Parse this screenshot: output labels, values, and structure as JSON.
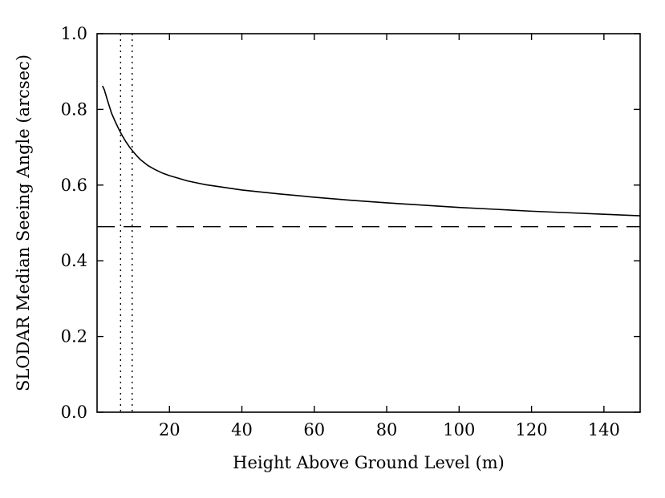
{
  "chart_data": {
    "type": "line",
    "xlabel": "Height Above Ground Level (m)",
    "ylabel": "SLODAR Median Seeing Angle (arcsec)",
    "xlim": [
      0,
      150
    ],
    "ylim": [
      0.0,
      1.0
    ],
    "x_ticks": [
      20,
      40,
      60,
      80,
      100,
      120,
      140
    ],
    "y_ticks": [
      0.0,
      0.2,
      0.4,
      0.6,
      0.8,
      1.0
    ],
    "y_tick_labels": [
      "0.0",
      "0.2",
      "0.4",
      "0.6",
      "0.8",
      "1.0"
    ],
    "grid": false,
    "series": [
      {
        "style": "solid",
        "color": "#000000",
        "x": [
          1.5,
          2,
          3,
          4,
          5,
          6,
          7,
          8,
          9,
          10,
          11,
          12,
          14,
          16,
          18,
          20,
          25,
          30,
          40,
          50,
          60,
          70,
          80,
          90,
          100,
          110,
          120,
          130,
          140,
          150
        ],
        "y": [
          0.862,
          0.852,
          0.82,
          0.79,
          0.768,
          0.748,
          0.73,
          0.714,
          0.7,
          0.688,
          0.677,
          0.667,
          0.652,
          0.641,
          0.632,
          0.625,
          0.611,
          0.601,
          0.587,
          0.577,
          0.568,
          0.56,
          0.553,
          0.547,
          0.541,
          0.536,
          0.531,
          0.527,
          0.523,
          0.519
        ]
      }
    ],
    "reference_lines": [
      {
        "orientation": "horizontal",
        "value": 0.49,
        "style": "dashed",
        "color": "#000000"
      },
      {
        "orientation": "vertical",
        "value": 6.5,
        "style": "dotted",
        "color": "#000000"
      },
      {
        "orientation": "vertical",
        "value": 9.7,
        "style": "dotted",
        "color": "#000000"
      }
    ]
  }
}
